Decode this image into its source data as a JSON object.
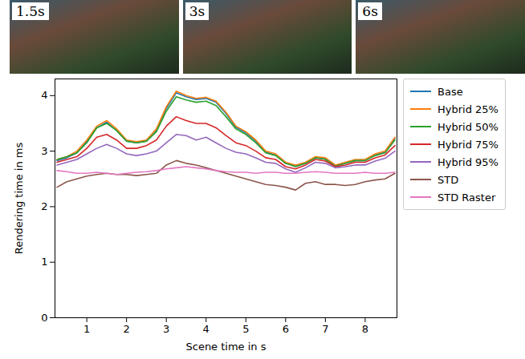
{
  "chart_data": {
    "type": "line",
    "annotations": [
      "1.5s",
      "3s",
      "6s"
    ],
    "x_label": "Scene time in s",
    "y_label": "Rendering time in ms",
    "x": [
      0.25,
      0.5,
      0.75,
      1.0,
      1.25,
      1.5,
      1.75,
      2.0,
      2.25,
      2.5,
      2.75,
      3.0,
      3.25,
      3.5,
      3.75,
      4.0,
      4.25,
      4.5,
      4.75,
      5.0,
      5.25,
      5.5,
      5.75,
      6.0,
      6.25,
      6.5,
      6.75,
      7.0,
      7.25,
      7.5,
      7.75,
      8.0,
      8.25,
      8.5,
      8.75
    ],
    "xlim": [
      0.2,
      8.8
    ],
    "xticks": [
      1,
      2,
      3,
      4,
      5,
      6,
      7,
      8
    ],
    "ylim": [
      0,
      4.3
    ],
    "yticks": [
      0,
      1,
      2,
      3,
      4
    ],
    "grid": false,
    "legend": "right",
    "series": [
      {
        "name": "Base",
        "color": "#1f77b4",
        "values": [
          2.83,
          2.88,
          2.97,
          3.17,
          3.42,
          3.52,
          3.37,
          3.18,
          3.15,
          3.18,
          3.38,
          3.77,
          4.05,
          3.98,
          3.93,
          3.95,
          3.88,
          3.68,
          3.43,
          3.33,
          3.18,
          2.98,
          2.93,
          2.78,
          2.73,
          2.78,
          2.88,
          2.86,
          2.73,
          2.78,
          2.83,
          2.83,
          2.93,
          2.98,
          3.23
        ]
      },
      {
        "name": "Hybrid 25%",
        "color": "#ff7f0e",
        "values": [
          2.85,
          2.9,
          3.0,
          3.2,
          3.45,
          3.55,
          3.4,
          3.2,
          3.17,
          3.2,
          3.4,
          3.8,
          4.08,
          4.0,
          3.95,
          3.97,
          3.9,
          3.7,
          3.45,
          3.35,
          3.2,
          3.0,
          2.95,
          2.8,
          2.75,
          2.8,
          2.9,
          2.88,
          2.75,
          2.8,
          2.85,
          2.85,
          2.95,
          3.0,
          3.25
        ]
      },
      {
        "name": "Hybrid 50%",
        "color": "#2ca02c",
        "values": [
          2.85,
          2.9,
          2.97,
          3.15,
          3.42,
          3.5,
          3.37,
          3.18,
          3.15,
          3.18,
          3.35,
          3.72,
          3.98,
          3.92,
          3.88,
          3.9,
          3.82,
          3.62,
          3.4,
          3.3,
          3.15,
          2.97,
          2.92,
          2.78,
          2.72,
          2.78,
          2.88,
          2.85,
          2.73,
          2.78,
          2.83,
          2.83,
          2.92,
          2.97,
          3.2
        ]
      },
      {
        "name": "Hybrid 75%",
        "color": "#d62728",
        "values": [
          2.8,
          2.85,
          2.9,
          3.05,
          3.25,
          3.3,
          3.2,
          3.05,
          3.05,
          3.1,
          3.2,
          3.45,
          3.62,
          3.55,
          3.5,
          3.5,
          3.42,
          3.28,
          3.15,
          3.1,
          3.0,
          2.88,
          2.85,
          2.72,
          2.68,
          2.75,
          2.85,
          2.82,
          2.72,
          2.75,
          2.8,
          2.8,
          2.88,
          2.93,
          3.1
        ]
      },
      {
        "name": "Hybrid 95%",
        "color": "#9467bd",
        "values": [
          2.75,
          2.8,
          2.85,
          2.95,
          3.05,
          3.12,
          3.05,
          2.95,
          2.92,
          2.95,
          3.0,
          3.15,
          3.3,
          3.28,
          3.2,
          3.25,
          3.15,
          3.05,
          2.98,
          2.95,
          2.88,
          2.8,
          2.78,
          2.68,
          2.62,
          2.7,
          2.8,
          2.78,
          2.7,
          2.72,
          2.75,
          2.75,
          2.82,
          2.87,
          3.0
        ]
      },
      {
        "name": "STD",
        "color": "#8c564b",
        "values": [
          2.35,
          2.45,
          2.5,
          2.55,
          2.58,
          2.6,
          2.58,
          2.58,
          2.56,
          2.58,
          2.6,
          2.75,
          2.83,
          2.78,
          2.75,
          2.7,
          2.65,
          2.6,
          2.55,
          2.5,
          2.45,
          2.4,
          2.38,
          2.35,
          2.3,
          2.42,
          2.45,
          2.4,
          2.4,
          2.38,
          2.4,
          2.45,
          2.48,
          2.5,
          2.6
        ]
      },
      {
        "name": "STD Raster",
        "color": "#e377c2",
        "values": [
          2.65,
          2.63,
          2.6,
          2.6,
          2.62,
          2.6,
          2.58,
          2.6,
          2.62,
          2.63,
          2.65,
          2.68,
          2.7,
          2.72,
          2.7,
          2.68,
          2.65,
          2.63,
          2.62,
          2.62,
          2.6,
          2.62,
          2.62,
          2.6,
          2.6,
          2.62,
          2.63,
          2.62,
          2.6,
          2.6,
          2.6,
          2.62,
          2.6,
          2.6,
          2.62
        ]
      }
    ]
  }
}
